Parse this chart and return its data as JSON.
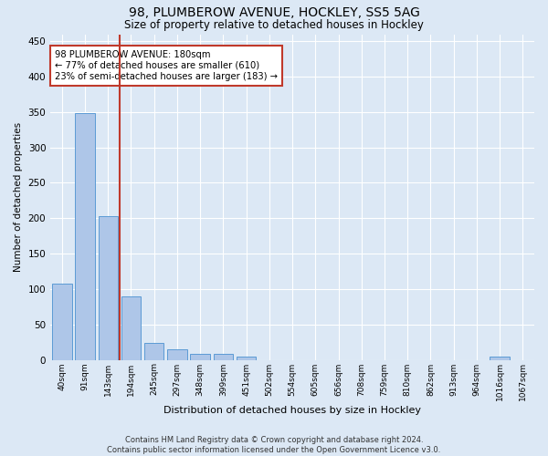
{
  "title1": "98, PLUMBEROW AVENUE, HOCKLEY, SS5 5AG",
  "title2": "Size of property relative to detached houses in Hockley",
  "xlabel": "Distribution of detached houses by size in Hockley",
  "ylabel": "Number of detached properties",
  "categories": [
    "40sqm",
    "91sqm",
    "143sqm",
    "194sqm",
    "245sqm",
    "297sqm",
    "348sqm",
    "399sqm",
    "451sqm",
    "502sqm",
    "554sqm",
    "605sqm",
    "656sqm",
    "708sqm",
    "759sqm",
    "810sqm",
    "862sqm",
    "913sqm",
    "964sqm",
    "1016sqm",
    "1067sqm"
  ],
  "values": [
    108,
    348,
    203,
    89,
    24,
    15,
    8,
    8,
    5,
    0,
    0,
    0,
    0,
    0,
    0,
    0,
    0,
    0,
    0,
    5,
    0
  ],
  "bar_color": "#aec6e8",
  "bar_edge_color": "#5b9bd5",
  "vline_color": "#c0392b",
  "annotation_line1": "98 PLUMBEROW AVENUE: 180sqm",
  "annotation_line2": "← 77% of detached houses are smaller (610)",
  "annotation_line3": "23% of semi-detached houses are larger (183) →",
  "annotation_box_color": "#ffffff",
  "annotation_box_edge": "#c0392b",
  "ylim": [
    0,
    460
  ],
  "yticks": [
    0,
    50,
    100,
    150,
    200,
    250,
    300,
    350,
    400,
    450
  ],
  "bg_color": "#dce8f5",
  "grid_color": "#ffffff",
  "footer": "Contains HM Land Registry data © Crown copyright and database right 2024.\nContains public sector information licensed under the Open Government Licence v3.0."
}
